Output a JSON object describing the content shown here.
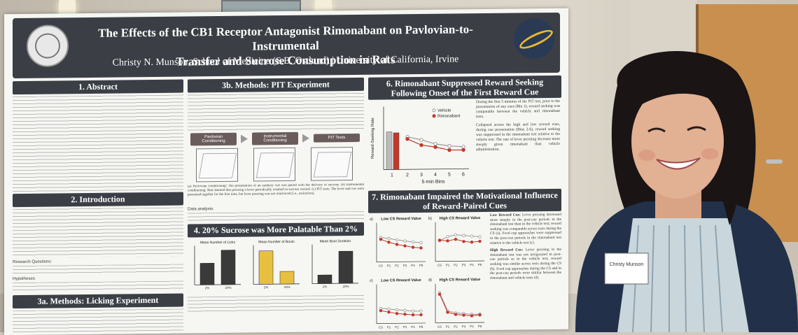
{
  "poster": {
    "title_line1": "The Effects of the CB1 Receptor Antagonist Rimonabant on Pavlovian-to-Instrumental",
    "title_line2": "Transfer and Sucrose Consumption in Rats",
    "authors": "Christy N. Munson, School of Medicine (S.B. Ostlund) | University of California, Irvine",
    "sections": {
      "abstract": "1. Abstract",
      "introduction": "2. Introduction",
      "licking": "3a. Methods: Licking Experiment",
      "pit_methods": "3b. Methods: PIT Experiment",
      "sucrose": "4. 20% Sucrose was More Palatable Than 2%",
      "suppressed": "6. Rimonabant Suppressed Reward Seeking Following Onset of the First Reward Cue",
      "impaired": "7. Rimonabant Impaired the Motivational Influence of Reward-Paired Cues"
    },
    "intro_questions_label": "Research Questions:",
    "hypotheses_label": "Hypotheses:",
    "flow": {
      "step1": "Pavlovian Conditioning",
      "step2": "Instrumental Conditioning",
      "step3": "PIT Tests"
    },
    "pit_caption": "(a) Pavlovian conditioning: The presentation of an auditory cue was paired with the delivery of sucrose. (b) Instrumental conditioning: Rats learned that pressing a lever periodically resulted in sucrose reward. (c) PIT tests: The lever and cue were presented together for the first time, but lever pressing was not reinforced (i.e., extinction).",
    "data_analysis": "Data analysis:",
    "sec6_text": "During the first 5 minutes of the PIT test, prior to the presentation of any cues (Bin 1), reward seeking was comparable between the vehicle and rimonabant tests.",
    "sec6_text2": "Collapsed across the high and low reward cues, during cue presentation (Bins 2-6), reward seeking was suppressed in the rimonabant test relative to the vehicle test. The rate of lever pressing decrease more steeply given rimonabant than vehicle administration.",
    "sec7_low_label": "Low Reward Cue:",
    "sec7_low_text": "Lever pressing decreased more steeply in the post-cue periods in the rimonabant test than in the vehicle test; reward seeking was comparable across tests during the CS (a). Food cup approaches were suppressed in the post-cue periods in the rimonabant test relative to the vehicle test (c).",
    "sec7_high_label": "High Reward Cue:",
    "sec7_high_text": "Lever pressing in the rimonabant test was not invigorated in post-cue periods as in the vehicle test; reward seeking was similar across tests during the CS (b). Food cup approaches during the CS and in the post-cue periods were similar between the rimonabant and vehicle tests (d).",
    "badge_name": "Christy Munson"
  },
  "chart_data": [
    {
      "type": "bar",
      "title": "Mean Number of Licks",
      "categories": [
        "2%",
        "20%"
      ],
      "values": [
        55,
        88
      ],
      "ylim": [
        0,
        100
      ],
      "color": "#3a3a3a"
    },
    {
      "type": "bar",
      "title": "Mean Number of Bouts",
      "categories": [
        "2%",
        "20%"
      ],
      "values": [
        85,
        32
      ],
      "ylim": [
        0,
        100
      ],
      "color": "#e8c040"
    },
    {
      "type": "bar",
      "title": "Mean Bout Duration",
      "categories": [
        "2%",
        "20%"
      ],
      "values": [
        22,
        82
      ],
      "ylim": [
        0,
        100
      ],
      "color": "#3a3a3a"
    },
    {
      "type": "line",
      "xlabel": "5-min Bins",
      "ylabel": "Reward-Seeking Rate",
      "x": [
        1,
        2,
        3,
        4,
        5,
        6
      ],
      "series": [
        {
          "name": "Vehicle",
          "values": [
            7,
            6.2,
            5.6,
            4.8,
            4.4,
            4.2
          ]
        },
        {
          "name": "Rimonabant",
          "values": [
            7.2,
            5.8,
            4.6,
            4.2,
            3.6,
            3.6
          ]
        }
      ],
      "bars": [
        {
          "value": 7.2,
          "color": "#bbbbbb"
        },
        {
          "value": 7.0,
          "color": "#c0392b"
        }
      ],
      "ylim": [
        0,
        12
      ],
      "legend": "top-right"
    },
    {
      "type": "line",
      "panel": "a)",
      "title": "Low CS Reward Value",
      "categories": [
        "CS",
        "P1",
        "P2",
        "P3",
        "P4",
        "P5"
      ],
      "series": [
        {
          "name": "Vehicle",
          "values": [
            6.5,
            6.2,
            5.8,
            5.5,
            5.2,
            5.0
          ]
        },
        {
          "name": "Rimonabant",
          "values": [
            6.0,
            5.2,
            4.6,
            4.2,
            3.8,
            3.6
          ]
        }
      ],
      "ylim": [
        0,
        10
      ]
    },
    {
      "type": "line",
      "panel": "b)",
      "title": "High CS Reward Value",
      "categories": [
        "CS",
        "P1",
        "P2",
        "P3",
        "P4",
        "P5"
      ],
      "series": [
        {
          "name": "Vehicle",
          "values": [
            5.5,
            6.5,
            7.0,
            6.8,
            6.6,
            6.4
          ]
        },
        {
          "name": "Rimonabant",
          "values": [
            5.6,
            5.4,
            5.8,
            5.2,
            5.0,
            5.2
          ]
        }
      ],
      "ylim": [
        0,
        10
      ]
    },
    {
      "type": "line",
      "panel": "c)",
      "title": "Low CS Reward Value",
      "categories": [
        "CS",
        "P1",
        "P2",
        "P3",
        "P4",
        "P5"
      ],
      "series": [
        {
          "name": "Vehicle",
          "values": [
            4.0,
            3.8,
            3.6,
            3.4,
            3.2,
            3.2
          ]
        },
        {
          "name": "Rimonabant",
          "values": [
            3.4,
            3.0,
            2.6,
            2.4,
            2.2,
            2.2
          ]
        }
      ],
      "ylim": [
        0,
        10
      ]
    },
    {
      "type": "line",
      "panel": "d)",
      "title": "High CS Reward Value",
      "categories": [
        "CS",
        "P1",
        "P2",
        "P3",
        "P4",
        "P5"
      ],
      "series": [
        {
          "name": "Vehicle",
          "values": [
            8.0,
            3.2,
            2.6,
            2.4,
            2.2,
            2.2
          ]
        },
        {
          "name": "Rimonabant",
          "values": [
            7.6,
            2.8,
            2.2,
            2.0,
            1.8,
            2.0
          ]
        }
      ],
      "ylim": [
        0,
        10
      ]
    }
  ],
  "colors": {
    "header": "#3b3f45",
    "vehicle": "#999999",
    "rimonabant": "#c0392b"
  }
}
